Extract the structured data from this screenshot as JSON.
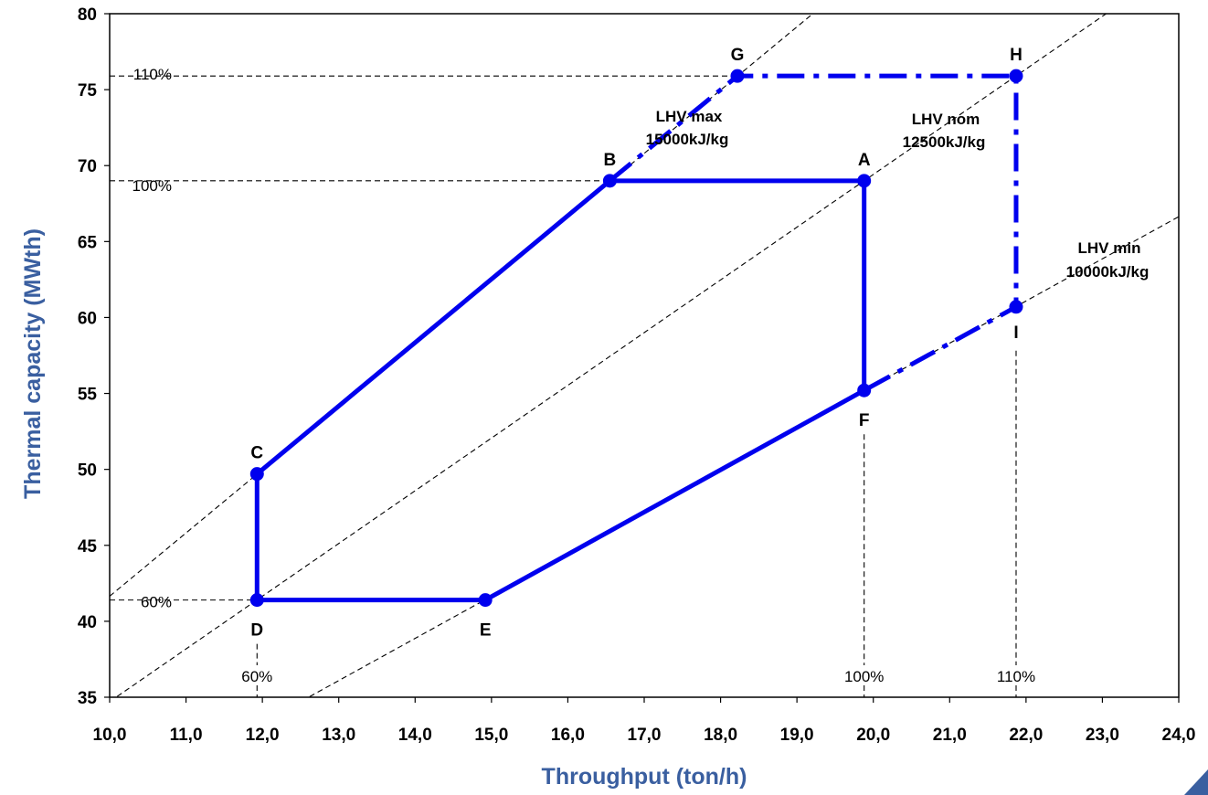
{
  "chart_data": {
    "type": "line",
    "title": "",
    "xlabel": "Throughput (ton/h)",
    "ylabel": "Thermal capacity (MWth)",
    "xlim": [
      10,
      24
    ],
    "ylim": [
      35,
      80
    ],
    "x_ticks": [
      "10,0",
      "11,0",
      "12,0",
      "13,0",
      "14,0",
      "15,0",
      "16,0",
      "17,0",
      "18,0",
      "19,0",
      "20,0",
      "21,0",
      "22,0",
      "23,0",
      "24,0"
    ],
    "y_ticks": [
      "35",
      "40",
      "45",
      "50",
      "55",
      "60",
      "65",
      "70",
      "75",
      "80"
    ],
    "title_color": "#3a5fa0",
    "series_color": "#0000ee",
    "points": [
      {
        "name": "A",
        "x": 19.88,
        "y": 69.0
      },
      {
        "name": "B",
        "x": 16.55,
        "y": 69.0
      },
      {
        "name": "C",
        "x": 11.93,
        "y": 49.7
      },
      {
        "name": "D",
        "x": 11.93,
        "y": 41.4
      },
      {
        "name": "E",
        "x": 14.92,
        "y": 41.4
      },
      {
        "name": "F",
        "x": 19.88,
        "y": 55.2
      },
      {
        "name": "G",
        "x": 18.22,
        "y": 75.9
      },
      {
        "name": "H",
        "x": 21.87,
        "y": 75.9
      },
      {
        "name": "I",
        "x": 21.87,
        "y": 60.7
      }
    ],
    "operating_envelope": [
      "A",
      "B",
      "C",
      "D",
      "E",
      "F",
      "A"
    ],
    "extended_envelope": [
      "B",
      "G",
      "H",
      "I",
      "F"
    ],
    "lhv_lines": [
      {
        "label": "LHV max",
        "value_label": "15000kJ/kg",
        "lhv_kj_per_kg": 15000
      },
      {
        "label": "LHV nom",
        "value_label": "12500kJ/kg",
        "lhv_kj_per_kg": 12500
      },
      {
        "label": "LHV min",
        "value_label": "10000kJ/kg",
        "lhv_kj_per_kg": 10000
      }
    ],
    "capacity_references": [
      {
        "label": "110%",
        "y": 75.9
      },
      {
        "label": "100%",
        "y": 69.0
      },
      {
        "label": "60%",
        "y": 41.4
      }
    ],
    "throughput_references": [
      {
        "label": "60%",
        "x": 11.93
      },
      {
        "label": "100%",
        "x": 19.88
      },
      {
        "label": "110%",
        "x": 21.87
      }
    ]
  }
}
